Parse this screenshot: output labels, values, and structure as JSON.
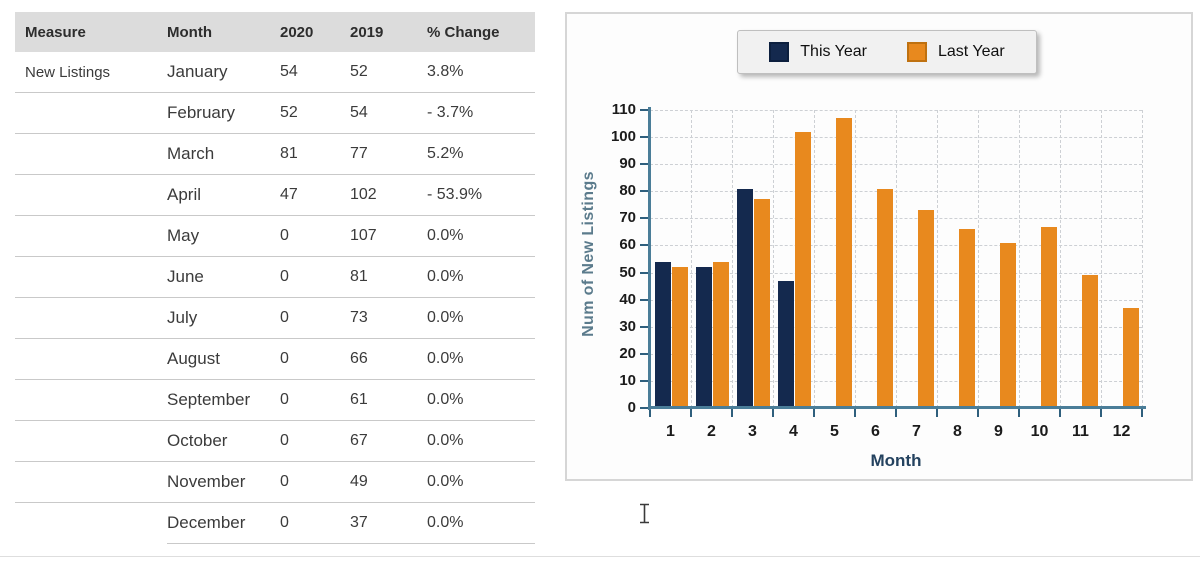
{
  "table": {
    "headers": [
      "Measure",
      "Month",
      "2020",
      "2019",
      "% Change"
    ],
    "measure": "New Listings",
    "rows": [
      {
        "month": "January",
        "y2020": "54",
        "y2019": "52",
        "change": "3.8%"
      },
      {
        "month": "February",
        "y2020": "52",
        "y2019": "54",
        "change": "- 3.7%"
      },
      {
        "month": "March",
        "y2020": "81",
        "y2019": "77",
        "change": "5.2%"
      },
      {
        "month": "April",
        "y2020": "47",
        "y2019": "102",
        "change": "- 53.9%"
      },
      {
        "month": "May",
        "y2020": "0",
        "y2019": "107",
        "change": "0.0%"
      },
      {
        "month": "June",
        "y2020": "0",
        "y2019": "81",
        "change": "0.0%"
      },
      {
        "month": "July",
        "y2020": "0",
        "y2019": "73",
        "change": "0.0%"
      },
      {
        "month": "August",
        "y2020": "0",
        "y2019": "66",
        "change": "0.0%"
      },
      {
        "month": "September",
        "y2020": "0",
        "y2019": "61",
        "change": "0.0%"
      },
      {
        "month": "October",
        "y2020": "0",
        "y2019": "67",
        "change": "0.0%"
      },
      {
        "month": "November",
        "y2020": "0",
        "y2019": "49",
        "change": "0.0%"
      },
      {
        "month": "December",
        "y2020": "0",
        "y2019": "37",
        "change": "0.0%"
      }
    ]
  },
  "chart_data": {
    "type": "bar",
    "categories": [
      "1",
      "2",
      "3",
      "4",
      "5",
      "6",
      "7",
      "8",
      "9",
      "10",
      "11",
      "12"
    ],
    "series": [
      {
        "name": "This Year",
        "color": "#14294e",
        "values": [
          54,
          52,
          81,
          47,
          0,
          0,
          0,
          0,
          0,
          0,
          0,
          0
        ]
      },
      {
        "name": "Last Year",
        "color": "#e8891e",
        "values": [
          52,
          54,
          77,
          102,
          107,
          81,
          73,
          66,
          61,
          67,
          49,
          37
        ]
      }
    ],
    "xlabel": "Month",
    "ylabel": "Num of New Listings",
    "ylim": [
      0,
      110
    ],
    "ytick_step": 10,
    "grid": true,
    "legend_position": "top",
    "axis_color": "#4a7d98",
    "tick_color": "#2f5f7d",
    "grid_color": "#cdd0d4"
  },
  "cursor": {
    "glyph": "text-ibeam"
  }
}
